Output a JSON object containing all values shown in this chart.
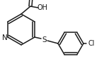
{
  "bg_color": "#ffffff",
  "line_color": "#1a1a1a",
  "line_width": 1.1,
  "font_size": 7.0,
  "figsize": [
    1.4,
    0.87
  ],
  "dpi": 100,
  "xlim": [
    0,
    140
  ],
  "ylim": [
    0,
    87
  ]
}
